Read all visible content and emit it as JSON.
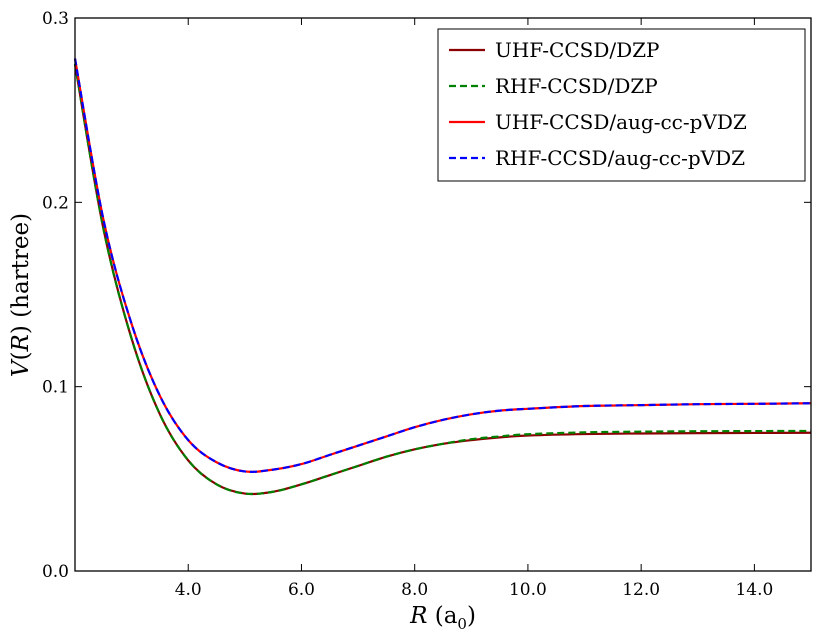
{
  "chart_data": {
    "type": "line",
    "title": "",
    "xlabel": {
      "main": "R",
      "unit_base": "a",
      "unit_sub": "0"
    },
    "ylabel": {
      "func": "V",
      "arg": "R",
      "unit": "hartree"
    },
    "xlim": [
      2.0,
      15.0
    ],
    "ylim": [
      0.0,
      0.3
    ],
    "xticks": [
      4.0,
      6.0,
      8.0,
      10.0,
      12.0,
      14.0
    ],
    "xtick_labels": [
      "4.0",
      "6.0",
      "8.0",
      "10.0",
      "12.0",
      "14.0"
    ],
    "yticks": [
      0.0,
      0.1,
      0.2,
      0.3
    ],
    "ytick_labels": [
      "0.0",
      "0.1",
      "0.2",
      "0.3"
    ],
    "grid": false,
    "legend_position": "top-right",
    "series": [
      {
        "name": "UHF-CCSD/DZP",
        "color": "#8b0000",
        "dash": "solid",
        "x": [
          2.0,
          2.5,
          3.0,
          3.5,
          4.0,
          4.5,
          5.0,
          5.5,
          6.0,
          6.5,
          7.0,
          7.5,
          8.0,
          8.5,
          9.0,
          9.5,
          10.0,
          11.0,
          12.0,
          13.0,
          14.0,
          15.0
        ],
        "y": [
          0.275,
          0.186,
          0.126,
          0.085,
          0.06,
          0.047,
          0.042,
          0.043,
          0.047,
          0.052,
          0.057,
          0.062,
          0.066,
          0.069,
          0.071,
          0.0725,
          0.0735,
          0.0743,
          0.0746,
          0.0748,
          0.0749,
          0.075
        ]
      },
      {
        "name": "RHF-CCSD/DZP",
        "color": "#008000",
        "dash": "dashed",
        "x": [
          2.0,
          2.5,
          3.0,
          3.5,
          4.0,
          4.5,
          5.0,
          5.5,
          6.0,
          6.5,
          7.0,
          7.5,
          8.0,
          8.5,
          9.0,
          9.5,
          10.0,
          11.0,
          12.0,
          13.0,
          14.0,
          15.0
        ],
        "y": [
          0.275,
          0.186,
          0.126,
          0.085,
          0.06,
          0.047,
          0.042,
          0.043,
          0.047,
          0.052,
          0.057,
          0.062,
          0.066,
          0.069,
          0.0715,
          0.073,
          0.0742,
          0.0752,
          0.0756,
          0.0758,
          0.0759,
          0.076
        ]
      },
      {
        "name": "UHF-CCSD/aug-cc-pVDZ",
        "color": "#ff0000",
        "dash": "solid",
        "x": [
          2.0,
          2.5,
          3.0,
          3.5,
          4.0,
          4.5,
          5.0,
          5.5,
          6.0,
          6.5,
          7.0,
          7.5,
          8.0,
          8.5,
          9.0,
          9.5,
          10.0,
          11.0,
          12.0,
          13.0,
          14.0,
          15.0
        ],
        "y": [
          0.278,
          0.191,
          0.134,
          0.095,
          0.071,
          0.059,
          0.054,
          0.055,
          0.058,
          0.063,
          0.068,
          0.073,
          0.078,
          0.082,
          0.085,
          0.087,
          0.088,
          0.0895,
          0.09,
          0.0905,
          0.0907,
          0.091
        ]
      },
      {
        "name": "RHF-CCSD/aug-cc-pVDZ",
        "color": "#0000ff",
        "dash": "dashed",
        "x": [
          2.0,
          2.5,
          3.0,
          3.5,
          4.0,
          4.5,
          5.0,
          5.5,
          6.0,
          6.5,
          7.0,
          7.5,
          8.0,
          8.5,
          9.0,
          9.5,
          10.0,
          11.0,
          12.0,
          13.0,
          14.0,
          15.0
        ],
        "y": [
          0.278,
          0.191,
          0.134,
          0.095,
          0.071,
          0.059,
          0.054,
          0.055,
          0.058,
          0.063,
          0.068,
          0.073,
          0.078,
          0.082,
          0.085,
          0.087,
          0.088,
          0.0895,
          0.09,
          0.0905,
          0.0907,
          0.091
        ]
      }
    ]
  }
}
